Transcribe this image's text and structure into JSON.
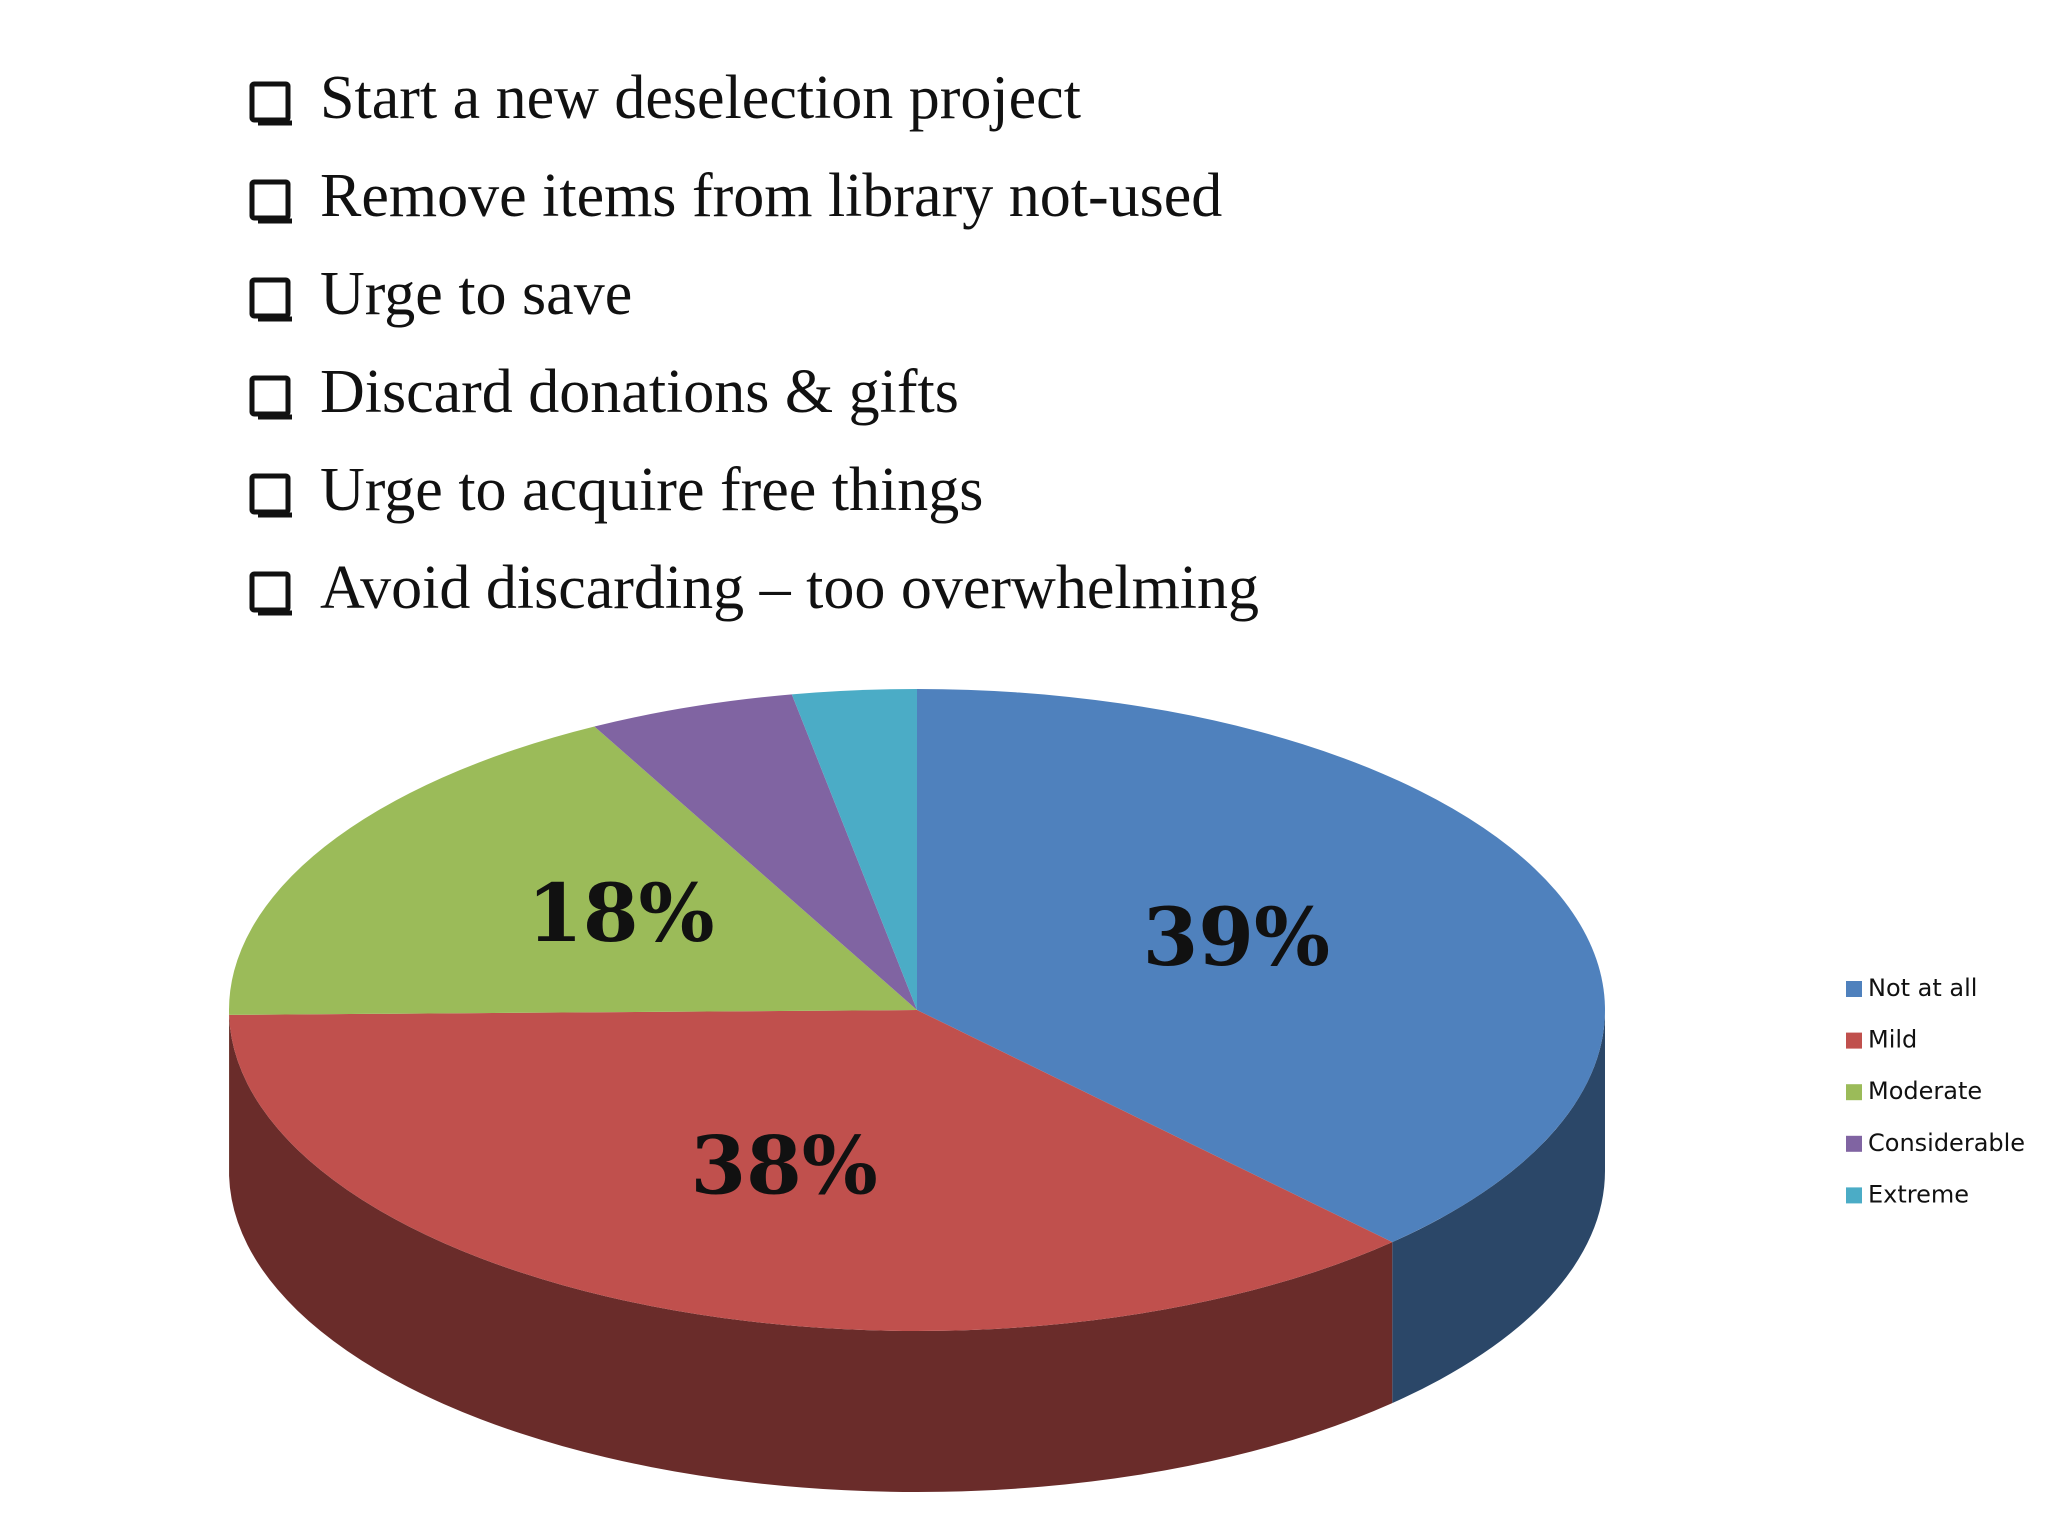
{
  "bullets": [
    "Start a new deselection project",
    "Remove items from library not-used",
    "Urge to save",
    "Discard donations & gifts",
    "Urge to acquire free things",
    "Avoid discarding – too overwhelming"
  ],
  "chart_data": {
    "type": "pie",
    "categories": [
      "Not at all",
      "Mild",
      "Moderate",
      "Considerable",
      "Extreme"
    ],
    "values": [
      39,
      38,
      18,
      5,
      3
    ],
    "value_labels": [
      "39%",
      "38%",
      "18%",
      null,
      null
    ],
    "colors": [
      "#4f81bd",
      "#c0504d",
      "#9bbb59",
      "#8064a2",
      "#4bacc6"
    ],
    "legend": "right"
  }
}
